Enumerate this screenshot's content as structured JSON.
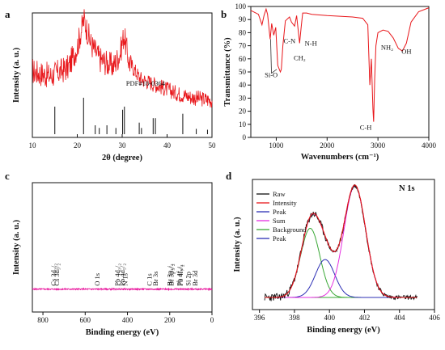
{
  "panels": {
    "a": "a",
    "b": "b",
    "c": "c",
    "d": "d"
  },
  "chart_data": [
    {
      "id": "a",
      "type": "line",
      "xlabel": "2θ (degree)",
      "ylabel": "Intensity (a. u.)",
      "xlim": [
        10,
        50
      ],
      "xticks": [
        10,
        20,
        30,
        40,
        50
      ],
      "colors": {
        "pattern": "#e8161a",
        "reference": "#111111"
      },
      "annotations": [
        {
          "text": "PDF#18-0364",
          "x": 30.5
        }
      ],
      "pattern_baseline": [
        [
          10,
          0.52
        ],
        [
          14,
          0.48
        ],
        [
          18,
          0.55
        ],
        [
          20,
          0.72
        ],
        [
          21.5,
          0.95
        ],
        [
          23,
          0.75
        ],
        [
          25,
          0.62
        ],
        [
          28,
          0.56
        ],
        [
          29.5,
          0.66
        ],
        [
          30.4,
          0.82
        ],
        [
          31.5,
          0.6
        ],
        [
          34,
          0.46
        ],
        [
          38,
          0.4
        ],
        [
          42,
          0.34
        ],
        [
          46,
          0.3
        ],
        [
          50,
          0.28
        ]
      ],
      "reference_peaks": [
        {
          "x": 15.0,
          "h": 0.62
        },
        {
          "x": 21.4,
          "h": 0.82
        },
        {
          "x": 24.0,
          "h": 0.2
        },
        {
          "x": 24.9,
          "h": 0.14
        },
        {
          "x": 26.6,
          "h": 0.2
        },
        {
          "x": 28.6,
          "h": 0.14
        },
        {
          "x": 30.1,
          "h": 0.55
        },
        {
          "x": 30.5,
          "h": 0.62
        },
        {
          "x": 33.8,
          "h": 0.26
        },
        {
          "x": 34.3,
          "h": 0.14
        },
        {
          "x": 36.9,
          "h": 0.36
        },
        {
          "x": 37.4,
          "h": 0.36
        },
        {
          "x": 43.5,
          "h": 0.46
        },
        {
          "x": 46.5,
          "h": 0.12
        },
        {
          "x": 49.0,
          "h": 0.1
        }
      ]
    },
    {
      "id": "b",
      "type": "line",
      "xlabel": "Wavenumbers (cm⁻¹)",
      "ylabel": "Transmittance (%)",
      "xlim": [
        500,
        4000
      ],
      "ylim": [
        0,
        100
      ],
      "xticks": [
        1000,
        2000,
        3000,
        4000
      ],
      "yticks": [
        0,
        10,
        20,
        30,
        40,
        50,
        60,
        70,
        80,
        90,
        100
      ],
      "colors": {
        "spectrum": "#e8161a"
      },
      "series": [
        {
          "values": [
            [
              500,
              97
            ],
            [
              650,
              94
            ],
            [
              720,
              86
            ],
            [
              760,
              93
            ],
            [
              800,
              98
            ],
            [
              830,
              94
            ],
            [
              880,
              75
            ],
            [
              910,
              87
            ],
            [
              950,
              78
            ],
            [
              990,
              84
            ],
            [
              1030,
              55
            ],
            [
              1080,
              50
            ],
            [
              1100,
              52
            ],
            [
              1130,
              70
            ],
            [
              1180,
              89
            ],
            [
              1260,
              92
            ],
            [
              1300,
              88
            ],
            [
              1360,
              85
            ],
            [
              1400,
              93
            ],
            [
              1460,
              72
            ],
            [
              1490,
              84
            ],
            [
              1520,
              95
            ],
            [
              1600,
              95
            ],
            [
              1700,
              94
            ],
            [
              2000,
              93
            ],
            [
              2500,
              92
            ],
            [
              2700,
              91
            ],
            [
              2800,
              86
            ],
            [
              2840,
              40
            ],
            [
              2870,
              60
            ],
            [
              2900,
              22
            ],
            [
              2915,
              12
            ],
            [
              2935,
              45
            ],
            [
              2960,
              70
            ],
            [
              3000,
              80
            ],
            [
              3100,
              82
            ],
            [
              3200,
              81
            ],
            [
              3300,
              76
            ],
            [
              3400,
              68
            ],
            [
              3480,
              66
            ],
            [
              3560,
              72
            ],
            [
              3650,
              88
            ],
            [
              3800,
              96
            ],
            [
              4000,
              99
            ]
          ]
        }
      ],
      "annotations": [
        {
          "text": "Si-O",
          "x": 900,
          "y": 46
        },
        {
          "text": "C-N",
          "x": 1260,
          "y": 72
        },
        {
          "text": "CH₂",
          "x": 1460,
          "y": 59
        },
        {
          "text": "N-H",
          "x": 1680,
          "y": 70
        },
        {
          "text": "NH₂",
          "x": 3180,
          "y": 67
        },
        {
          "text": "OH",
          "x": 3560,
          "y": 64
        },
        {
          "text": "C-H",
          "x": 2760,
          "y": 6
        }
      ]
    },
    {
      "id": "c",
      "type": "line",
      "xlabel": "Binding energy (eV)",
      "ylabel": "Intensity (a. u.)",
      "xlim": [
        850,
        0
      ],
      "xticks": [
        800,
        600,
        400,
        200,
        0
      ],
      "colors": {
        "spectrum": "#e8119b"
      },
      "series": [
        {
          "values": [
            [
              850,
              0.18
            ],
            [
              800,
              0.19
            ],
            [
              760,
              0.21
            ],
            [
              735,
              0.23
            ],
            [
              725,
              0.29
            ],
            [
              722,
              0.24
            ],
            [
              712,
              0.31
            ],
            [
              708,
              0.25
            ],
            [
              650,
              0.25
            ],
            [
              600,
              0.26
            ],
            [
              545,
              0.28
            ],
            [
              534,
              0.33
            ],
            [
              531,
              0.68
            ],
            [
              528,
              0.33
            ],
            [
              520,
              0.29
            ],
            [
              480,
              0.29
            ],
            [
              445,
              0.29
            ],
            [
              438,
              0.34
            ],
            [
              432,
              0.29
            ],
            [
              420,
              0.3
            ],
            [
              415,
              0.35
            ],
            [
              410,
              0.3
            ],
            [
              402,
              0.33
            ],
            [
              398,
              0.3
            ],
            [
              350,
              0.3
            ],
            [
              300,
              0.33
            ],
            [
              288,
              0.42
            ],
            [
              284,
              0.82
            ],
            [
              280,
              0.42
            ],
            [
              270,
              0.36
            ],
            [
              258,
              0.34
            ],
            [
              255,
              0.31
            ],
            [
              200,
              0.3
            ],
            [
              185,
              0.33
            ],
            [
              180,
              0.29
            ],
            [
              145,
              0.34
            ],
            [
              138,
              0.43
            ],
            [
              134,
              0.32
            ],
            [
              118,
              0.27
            ],
            [
              105,
              0.29
            ],
            [
              100,
              0.24
            ],
            [
              72,
              0.24
            ],
            [
              69,
              0.3
            ],
            [
              66,
              0.22
            ],
            [
              40,
              0.21
            ],
            [
              20,
              0.21
            ],
            [
              0,
              0.22
            ]
          ]
        }
      ],
      "annotations": [
        {
          "text": "Cs 3d₃/₂",
          "x": 738
        },
        {
          "text": "Cs 3d₅/₂",
          "x": 724
        },
        {
          "text": "O 1s",
          "x": 532
        },
        {
          "text": "Pb 4d₃/₂",
          "x": 436
        },
        {
          "text": "Pb 4d₅/₂",
          "x": 413
        },
        {
          "text": "N 1s",
          "x": 400
        },
        {
          "text": "C 1s",
          "x": 285
        },
        {
          "text": "Br 3s",
          "x": 256
        },
        {
          "text": "Br 3p₁/₂",
          "x": 189
        },
        {
          "text": "Br 3p₃/₂",
          "x": 182
        },
        {
          "text": "Pb 4f₅/₂",
          "x": 143
        },
        {
          "text": "Pb 4f₇/₂",
          "x": 138
        },
        {
          "text": "Si 2p",
          "x": 102
        },
        {
          "text": "Br 3d",
          "x": 69
        }
      ]
    },
    {
      "id": "d",
      "type": "line",
      "title": "N 1s",
      "xlabel": "Binding energy (eV)",
      "ylabel": "Intensity (a. u.)",
      "xlim": [
        395.6,
        406
      ],
      "xticks": [
        396,
        398,
        400,
        402,
        404,
        406
      ],
      "legend_position": "top-left",
      "series": [
        {
          "name": "Raw",
          "color": "#111111"
        },
        {
          "name": "Intensity",
          "color": "#e8161a"
        },
        {
          "name": "Peak",
          "color": "#2d2fb5"
        },
        {
          "name": "Sum",
          "color": "#e52ee0"
        },
        {
          "name": "Background",
          "color": "#3aa836"
        },
        {
          "name": "Peak",
          "color": "#2d2fb5"
        }
      ],
      "components": [
        {
          "label": "Peak",
          "center": 398.9,
          "height": 0.62,
          "sigma": 0.55,
          "color": "#3aa836"
        },
        {
          "label": "Peak",
          "center": 399.75,
          "height": 0.34,
          "sigma": 0.55,
          "color": "#2d2fb5"
        },
        {
          "label": "Peak",
          "center": 401.45,
          "height": 1.0,
          "sigma": 0.62,
          "color": "#e52ee0"
        }
      ]
    }
  ]
}
